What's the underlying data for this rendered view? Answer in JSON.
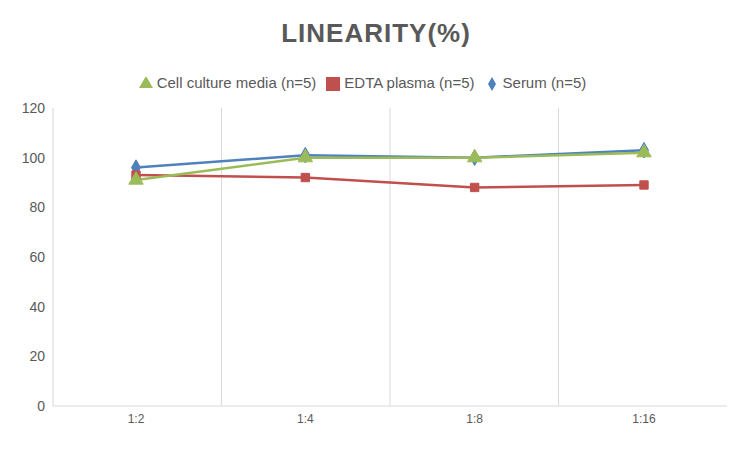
{
  "chart_data": {
    "type": "line",
    "title": "LINEARITY(%)",
    "categories": [
      "1:2",
      "1:4",
      "1:8",
      "1:16"
    ],
    "series": [
      {
        "name": "Serum (n=5)",
        "color": "#4f81bd",
        "marker": "diamond",
        "values": [
          96,
          101,
          100,
          103
        ]
      },
      {
        "name": "EDTA plasma (n=5)",
        "color": "#c0504d",
        "marker": "square",
        "values": [
          93,
          92,
          88,
          89
        ]
      },
      {
        "name": "Cell culture media (n=5)",
        "color": "#9bbb59",
        "marker": "triangle",
        "values": [
          91,
          100,
          100,
          102
        ]
      }
    ],
    "ylim": [
      0,
      120
    ],
    "yticks": [
      0,
      20,
      40,
      60,
      80,
      100,
      120
    ],
    "grid": true,
    "legend": "top"
  }
}
